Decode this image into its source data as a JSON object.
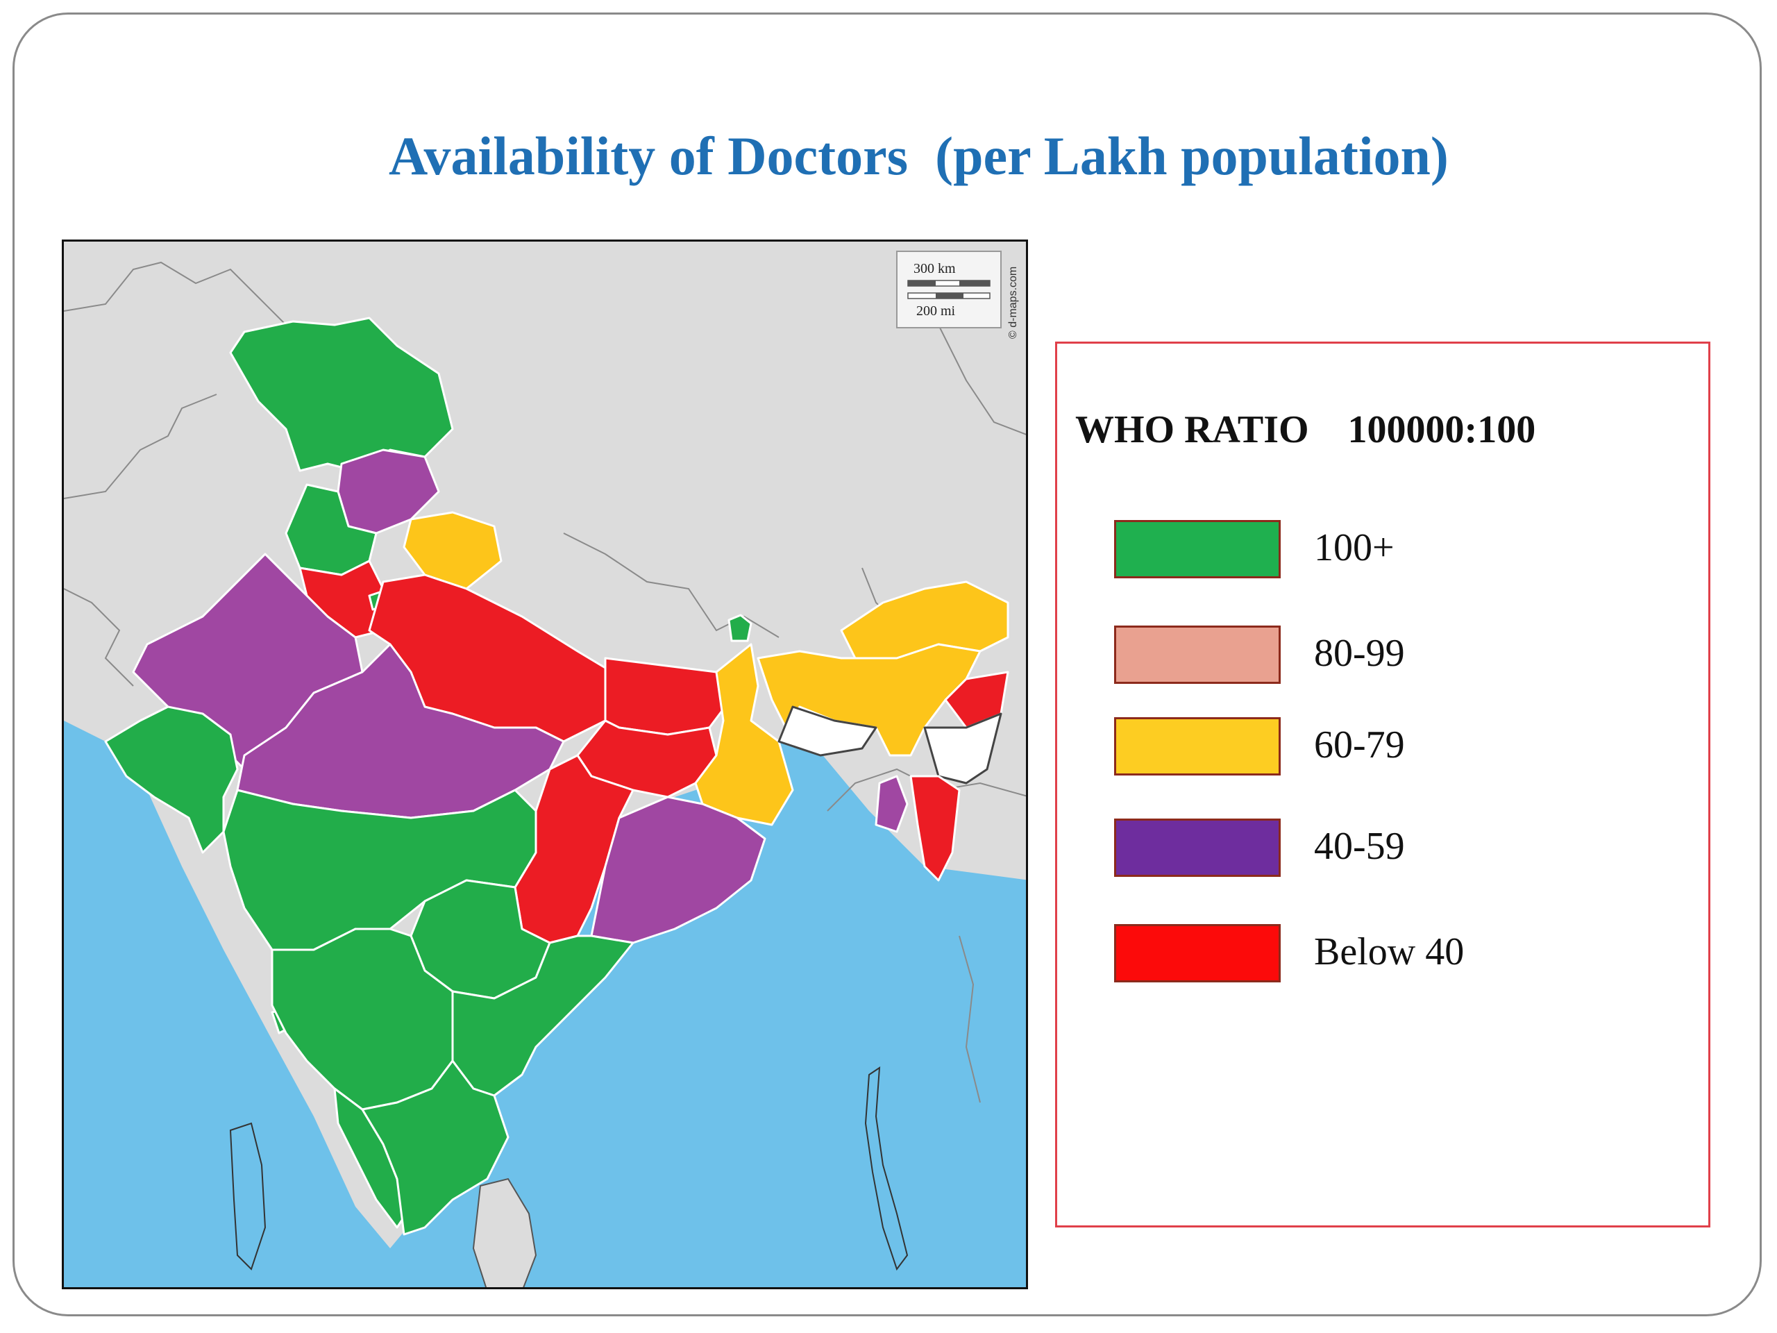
{
  "title": "Availability of Doctors  (per Lakh population)",
  "map": {
    "scale_km": "300 km",
    "scale_mi": "200 mi",
    "credit": "© d-maps.com",
    "colors": {
      "land": "#dcdcdc",
      "sea": "#6ec1ea",
      "border": "#8a8a8a"
    },
    "regions": [
      {
        "name": "Jammu and Kashmir",
        "category": "100+"
      },
      {
        "name": "Himachal Pradesh",
        "category": "40-59"
      },
      {
        "name": "Punjab",
        "category": "100+"
      },
      {
        "name": "Uttarakhand",
        "category": "60-79"
      },
      {
        "name": "Haryana",
        "category": "Below 40"
      },
      {
        "name": "Delhi",
        "category": "100+"
      },
      {
        "name": "Rajasthan",
        "category": "40-59"
      },
      {
        "name": "Uttar Pradesh",
        "category": "Below 40"
      },
      {
        "name": "Bihar",
        "category": "Below 40"
      },
      {
        "name": "Sikkim",
        "category": "100+"
      },
      {
        "name": "Gujarat",
        "category": "100+"
      },
      {
        "name": "Madhya Pradesh",
        "category": "40-59"
      },
      {
        "name": "Jharkhand",
        "category": "Below 40"
      },
      {
        "name": "West Bengal",
        "category": "60-79"
      },
      {
        "name": "Chhattisgarh",
        "category": "Below 40"
      },
      {
        "name": "Odisha",
        "category": "40-59"
      },
      {
        "name": "Maharashtra",
        "category": "100+"
      },
      {
        "name": "Telangana",
        "category": "100+"
      },
      {
        "name": "Andhra Pradesh",
        "category": "100+"
      },
      {
        "name": "Karnataka",
        "category": "100+"
      },
      {
        "name": "Goa",
        "category": "100+"
      },
      {
        "name": "Kerala",
        "category": "100+"
      },
      {
        "name": "Tamil Nadu",
        "category": "100+"
      },
      {
        "name": "Arunachal Pradesh",
        "category": "60-79"
      },
      {
        "name": "Assam",
        "category": "60-79"
      },
      {
        "name": "Meghalaya",
        "category": "no data"
      },
      {
        "name": "Nagaland",
        "category": "Below 40"
      },
      {
        "name": "Manipur",
        "category": "no data"
      },
      {
        "name": "Mizoram",
        "category": "Below 40"
      },
      {
        "name": "Tripura",
        "category": "40-59"
      }
    ]
  },
  "legend": {
    "title": "WHO RATIO    100000:100",
    "items": [
      {
        "label": "100+",
        "color": "#1fb04f"
      },
      {
        "label": "80-99",
        "color": "#e9a190"
      },
      {
        "label": "60-79",
        "color": "#fdcd22"
      },
      {
        "label": "40-59",
        "color": "#6e2d9e"
      },
      {
        "label": "Below 40",
        "color": "#fc0a0a"
      }
    ]
  },
  "map_fill_colors": {
    "100+": "#22ad4a",
    "60-79": "#fdc51a",
    "40-59": "#a047a2",
    "Below 40": "#ec1c24",
    "no data": "#ffffff"
  }
}
